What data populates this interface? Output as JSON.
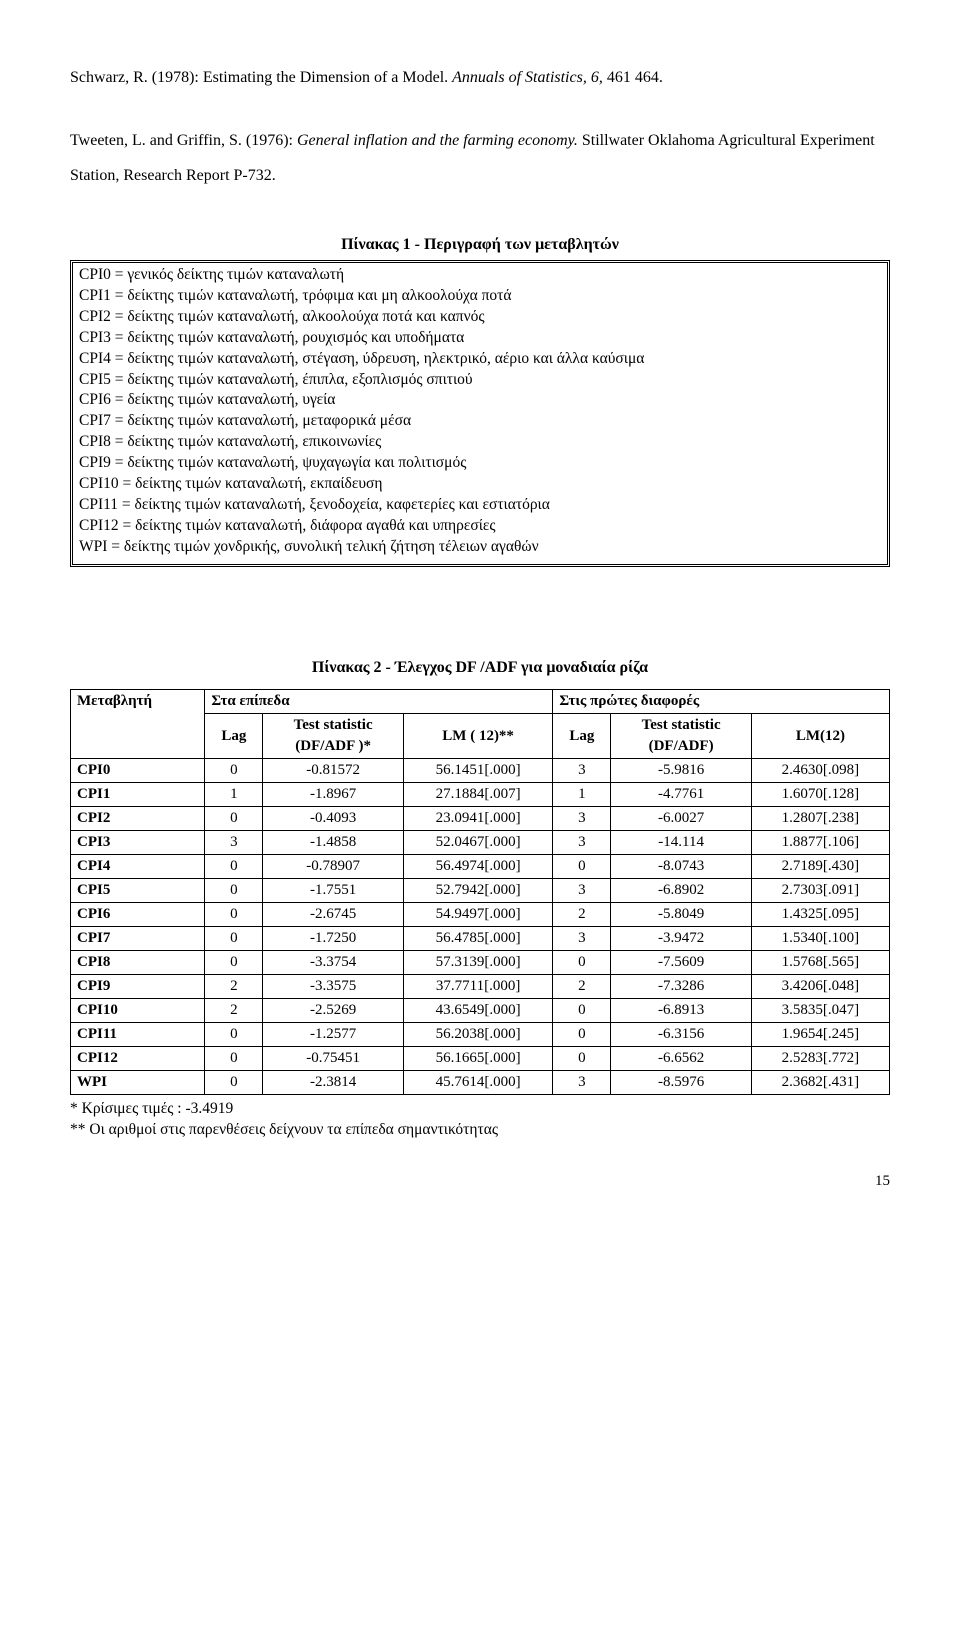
{
  "refs": [
    {
      "plain1": "Schwarz, R. (1978): Estimating the Dimension of a Model. ",
      "ital": "Annuals of Statistics, 6,",
      "plain2": " 461 464."
    },
    {
      "plain1": "Tweeten, L. and Griffin, S. (1976): ",
      "ital": "General inflation and the farming economy.",
      "plain2": " Stillwater Oklahoma Agricultural Experiment Station, Research Report P-732."
    }
  ],
  "table1": {
    "title": "Πίνακας 1 - Περιγραφή των μεταβλητών",
    "rows": [
      "CPI0   = γενικός δείκτης τιμών καταναλωτή",
      "CPI1   = δείκτης τιμών καταναλωτή, τρόφιμα και μη αλκοολούχα ποτά",
      "CPI2   = δείκτης τιμών καταναλωτή, αλκοολούχα ποτά και καπνός",
      "CPI3   = δείκτης τιμών καταναλωτή, ρουχισμός και υποδήματα",
      "CPI4   = δείκτης τιμών καταναλωτή, στέγαση, ύδρευση, ηλεκτρικό, αέριο και  άλλα  καύσιμα",
      "CPI5   = δείκτης τιμών καταναλωτή, έπιπλα, εξοπλισμός σπιτιού",
      "CPI6   = δείκτης τιμών καταναλωτή, υγεία",
      "CPI7   = δείκτης τιμών καταναλωτή, μεταφορικά μέσα",
      "CPI8   = δείκτης τιμών καταναλωτή, επικοινωνίες",
      "CPI9   = δείκτης τιμών καταναλωτή, ψυχαγωγία και πολιτισμός",
      "CPI10 = δείκτης τιμών καταναλωτή, εκπαίδευση",
      "CPI11 = δείκτης τιμών καταναλωτή, ξενοδοχεία, καφετερίες και εστιατόρια",
      "CPI12 = δείκτης τιμών καταναλωτή, διάφορα αγαθά και υπηρεσίες",
      "WPI    = δείκτης τιμών χονδρικής, συνολική τελική ζήτηση τέλειων αγαθών"
    ]
  },
  "table2": {
    "title": "Πίνακας 2 - Έλεγχος DF /ADF για μοναδιαία ρίζα",
    "head": {
      "var": "Μεταβλητή",
      "levels": "Στα επίπεδα",
      "diffs": "Στις πρώτες διαφορές",
      "lag": "Lag",
      "ts1a": "Test statistic",
      "ts1b": "(DF/ADF )*",
      "lm12a": "LM ( 12)**",
      "ts2a": "Test statistic",
      "ts2b": "(DF/ADF)",
      "lm12b": "LM(12)"
    },
    "rows": [
      [
        "CPI0",
        "0",
        "-0.81572",
        "56.1451[.000]",
        "3",
        "-5.9816",
        "2.4630[.098]"
      ],
      [
        "CPI1",
        "1",
        "-1.8967",
        "27.1884[.007]",
        "1",
        "-4.7761",
        "1.6070[.128]"
      ],
      [
        "CPI2",
        "0",
        "-0.4093",
        "23.0941[.000]",
        "3",
        "-6.0027",
        "1.2807[.238]"
      ],
      [
        "CPI3",
        "3",
        "-1.4858",
        "52.0467[.000]",
        "3",
        "-14.114",
        "1.8877[.106]"
      ],
      [
        "CPI4",
        "0",
        "-0.78907",
        "56.4974[.000]",
        "0",
        "-8.0743",
        "2.7189[.430]"
      ],
      [
        "CPI5",
        "0",
        "-1.7551",
        "52.7942[.000]",
        "3",
        "-6.8902",
        "2.7303[.091]"
      ],
      [
        "CPI6",
        "0",
        "-2.6745",
        "54.9497[.000]",
        "2",
        "-5.8049",
        "1.4325[.095]"
      ],
      [
        "CPI7",
        "0",
        "-1.7250",
        "56.4785[.000]",
        "3",
        "-3.9472",
        "1.5340[.100]"
      ],
      [
        "CPI8",
        "0",
        "-3.3754",
        "57.3139[.000]",
        "0",
        "-7.5609",
        "1.5768[.565]"
      ],
      [
        "CPI9",
        "2",
        "-3.3575",
        "37.7711[.000]",
        "2",
        "-7.3286",
        "3.4206[.048]"
      ],
      [
        "CPI10",
        "2",
        "-2.5269",
        "43.6549[.000]",
        "0",
        "-6.8913",
        "3.5835[.047]"
      ],
      [
        "CPI11",
        "0",
        "-1.2577",
        "56.2038[.000]",
        "0",
        "-6.3156",
        "1.9654[.245]"
      ],
      [
        "CPI12",
        "0",
        "-0.75451",
        "56.1665[.000]",
        "0",
        "-6.6562",
        "2.5283[.772]"
      ],
      [
        "WPI",
        "0",
        "-2.3814",
        "45.7614[.000]",
        "3",
        "-8.5976",
        "2.3682[.431]"
      ]
    ]
  },
  "footnotes": {
    "a": "* Κρίσιμες τιμές : -3.4919",
    "b": "** Οι αριθμοί στις παρενθέσεις δείχνουν τα επίπεδα σημαντικότητας"
  },
  "pagenum": "15"
}
